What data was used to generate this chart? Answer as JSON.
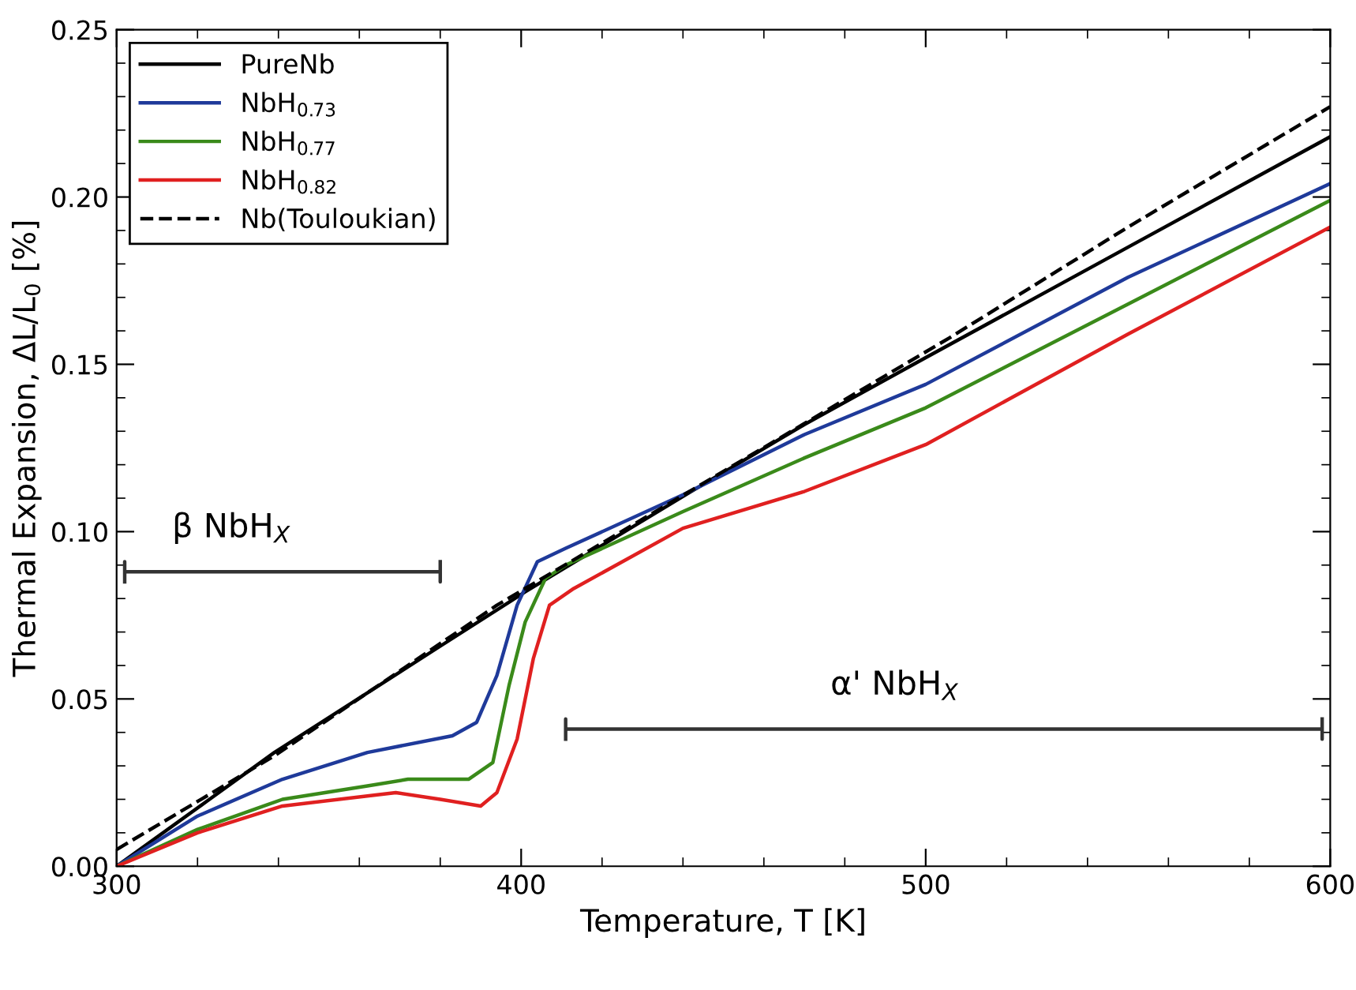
{
  "chart_data": {
    "type": "line",
    "xlabel": "Temperature, T [K]",
    "ylabel": "Thermal Expansion, ΔL/L$_{0}$ [%]",
    "xlim": [
      300,
      600
    ],
    "xticks": [
      300,
      400,
      500,
      600
    ],
    "ylim": [
      0,
      0.25
    ],
    "yticks": [
      {
        "value": 0,
        "label": "0.00"
      },
      {
        "value": 0.05,
        "label": "0.05"
      },
      {
        "value": 0.1,
        "label": "0.10"
      },
      {
        "value": 0.15,
        "label": "0.15"
      },
      {
        "value": 0.2,
        "label": "0.20"
      },
      {
        "value": 0.25,
        "label": "0.25"
      }
    ],
    "grid": false,
    "legend": "top left",
    "marker": "none",
    "series": [
      {
        "name": "PureNb",
        "color": "#000000",
        "line_style": "solid",
        "x": [
          300,
          339,
          379,
          401,
          442,
          470,
          500,
          550,
          600
        ],
        "values": [
          0,
          0.034,
          0.065,
          0.082,
          0.112,
          0.132,
          0.152,
          0.185,
          0.218
        ]
      },
      {
        "name": "NbH$_{0.73}$",
        "color": "#1f3a9a",
        "line_style": "solid",
        "x": [
          300,
          320,
          341,
          362,
          383,
          389,
          394,
          399,
          404,
          411,
          440,
          470,
          500,
          550,
          600
        ],
        "values": [
          0,
          0.015,
          0.026,
          0.034,
          0.039,
          0.043,
          0.057,
          0.078,
          0.091,
          0.095,
          0.111,
          0.129,
          0.144,
          0.176,
          0.204
        ]
      },
      {
        "name": "NbH$_{0.77}$",
        "color": "#3a8a1a",
        "line_style": "solid",
        "x": [
          300,
          320,
          341,
          362,
          372,
          387,
          393,
          397,
          401,
          406,
          411,
          440,
          470,
          500,
          550,
          600
        ],
        "values": [
          0,
          0.011,
          0.02,
          0.024,
          0.026,
          0.026,
          0.031,
          0.054,
          0.073,
          0.086,
          0.09,
          0.106,
          0.122,
          0.137,
          0.168,
          0.199
        ]
      },
      {
        "name": "NbH$_{0.82}$",
        "color": "#e02020",
        "line_style": "solid",
        "x": [
          300,
          320,
          341,
          369,
          380,
          390,
          394,
          399,
          403,
          407,
          413,
          440,
          470,
          500,
          550,
          600
        ],
        "values": [
          0,
          0.01,
          0.018,
          0.022,
          0.02,
          0.018,
          0.022,
          0.038,
          0.062,
          0.078,
          0.083,
          0.101,
          0.112,
          0.126,
          0.159,
          0.191
        ]
      },
      {
        "name": "Nb(Touloukian)",
        "color": "#000000",
        "line_style": "dashed",
        "x": [
          300,
          339,
          394,
          506,
          550,
          600
        ],
        "values": [
          0.005,
          0.033,
          0.078,
          0.158,
          0.191,
          0.227
        ]
      },
      {
        "color": "#333333",
        "line_style": "solid",
        "x": [
          302,
          302,
          302,
          380,
          380,
          380
        ],
        "values": [
          0.085,
          0.091,
          0.088,
          0.088,
          0.085,
          0.091
        ]
      },
      {
        "color": "#333333",
        "line_style": "solid",
        "x": [
          411,
          411,
          411,
          598,
          598,
          598
        ],
        "values": [
          0.038,
          0.044,
          0.041,
          0.041,
          0.038,
          0.044
        ]
      }
    ],
    "annotations": [
      "β NbH$_{X}$",
      "α' NbH$_{X}$"
    ]
  }
}
